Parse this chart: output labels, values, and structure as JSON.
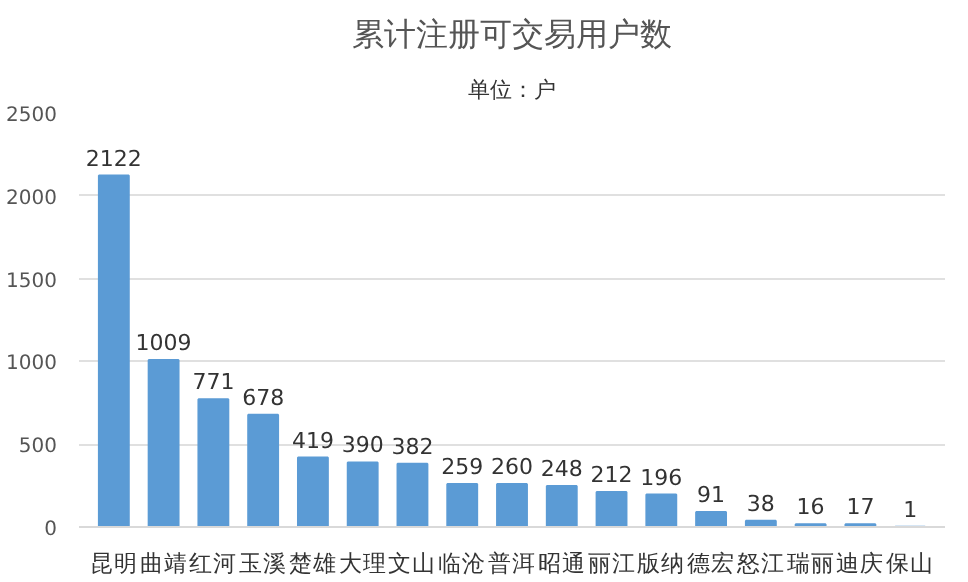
{
  "chart_data": {
    "type": "bar",
    "title": "累计注册可交易用户数",
    "subtitle": "单位：户",
    "categories": [
      "昆明",
      "曲靖",
      "红河",
      "玉溪",
      "楚雄",
      "大理",
      "文山",
      "临沧",
      "普洱",
      "昭通",
      "丽江",
      "版纳",
      "德宏",
      "怒江",
      "瑞丽",
      "迪庆",
      "保山"
    ],
    "values": [
      2122,
      1009,
      771,
      678,
      419,
      390,
      382,
      259,
      260,
      248,
      212,
      196,
      91,
      38,
      16,
      17,
      1
    ],
    "color": "#5b9bd5",
    "ylim": [
      0,
      2500
    ],
    "yticks": [
      0,
      500,
      1000,
      1500,
      2000,
      2500
    ],
    "grid": "y",
    "data_labels": true
  }
}
